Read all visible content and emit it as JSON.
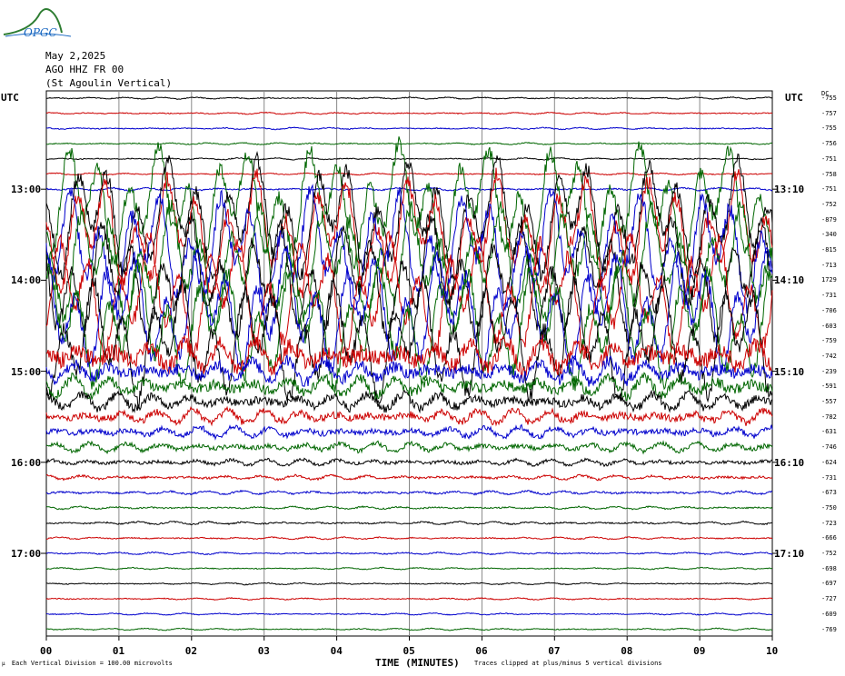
{
  "logo": {
    "text": "OPGC",
    "color": "#2e7d32"
  },
  "header": {
    "date": "May 2,2025",
    "station": "AGO HHZ FR 00",
    "location": "(St Agoulin Vertical)"
  },
  "utc_left": "UTC",
  "utc_right": "UTC",
  "dc_label": "DC",
  "chart_data": {
    "type": "line",
    "title": "",
    "xlabel": "TIME (MINUTES)",
    "x_ticks": [
      "00",
      "01",
      "02",
      "03",
      "04",
      "05",
      "06",
      "07",
      "08",
      "09",
      "10"
    ],
    "xlim": [
      0,
      10
    ],
    "left_time_labels": [
      {
        "row": 6,
        "label": "13:00"
      },
      {
        "row": 12,
        "label": "14:00"
      },
      {
        "row": 18,
        "label": "15:00"
      },
      {
        "row": 24,
        "label": "16:00"
      },
      {
        "row": 30,
        "label": "17:00"
      }
    ],
    "right_time_labels": [
      {
        "row": 6,
        "label": "13:10"
      },
      {
        "row": 12,
        "label": "14:10"
      },
      {
        "row": 18,
        "label": "15:10"
      },
      {
        "row": 24,
        "label": "16:10"
      },
      {
        "row": 30,
        "label": "17:10"
      }
    ],
    "trace_colors": [
      "#000000",
      "#cc0000",
      "#0000cc",
      "#006600"
    ],
    "dc_offsets": [
      "-755",
      "-757",
      "-755",
      "-756",
      "-751",
      "-758",
      "-751",
      "-752",
      "-879",
      "-340",
      "-815",
      "-713",
      "1729",
      "-731",
      "-706",
      "-603",
      "-759",
      "-742",
      "-239",
      "-591",
      "-557",
      "-782",
      "-631",
      "-746",
      "-624",
      "-731",
      "-673",
      "-750",
      "-723",
      "-666",
      "-752",
      "-698",
      "-697",
      "-727",
      "-609",
      "-769"
    ],
    "amplitude": [
      0.1,
      0.1,
      0.1,
      0.1,
      0.1,
      0.1,
      0.15,
      5,
      5,
      5,
      5,
      5,
      5,
      5,
      5,
      5,
      5,
      1.8,
      1.3,
      1.1,
      0.9,
      0.8,
      0.6,
      0.5,
      0.35,
      0.25,
      0.2,
      0.15,
      0.15,
      0.12,
      0.12,
      0.1,
      0.1,
      0.1,
      0.1,
      0.1
    ],
    "clipping": "plus/minus 5 vertical divisions"
  },
  "footer": {
    "scale_note": "Each Vertical Division =  100.00 microvolts",
    "clip_note": "Traces clipped at plus/minus 5 vertical divisions"
  }
}
